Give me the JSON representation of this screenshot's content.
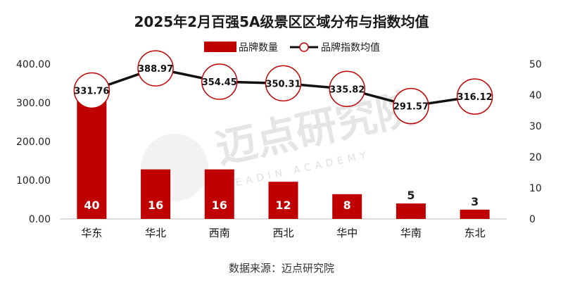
{
  "title": "2025年2月百强5A级景区区域分布与指数均值",
  "source": "数据来源：迈点研究院",
  "watermark": {
    "text_cn": "迈点研究院",
    "text_en": "MEADIN ACADEMY"
  },
  "colors": {
    "bar": "#c00000",
    "line": "#111111",
    "marker_edge": "#c00000",
    "marker_fill": "#ffffff"
  },
  "chart_data": {
    "type": "bar",
    "title": "2025年2月百强5A级景区区域分布与指数均值",
    "categories": [
      "华东",
      "华北",
      "西南",
      "西北",
      "华中",
      "华南",
      "东北"
    ],
    "series": [
      {
        "name": "品牌数量",
        "type": "bar",
        "axis": "right",
        "values": [
          40,
          16,
          16,
          12,
          8,
          5,
          3
        ],
        "labels": [
          "40",
          "16",
          "16",
          "12",
          "8",
          "5",
          "3"
        ]
      },
      {
        "name": "品牌指数均值",
        "type": "line",
        "axis": "left",
        "values": [
          331.76,
          388.97,
          354.45,
          350.31,
          335.82,
          291.57,
          316.12
        ],
        "labels": [
          "331.76",
          "388.97",
          "354.45",
          "350.31",
          "335.82",
          "291.57",
          "316.12"
        ]
      }
    ],
    "left_axis": {
      "range": [
        0,
        400
      ],
      "ticks": [
        0,
        100,
        200,
        300,
        400
      ],
      "tick_labels": [
        "0.00",
        "100.00",
        "200.00",
        "300.00",
        "400.00"
      ]
    },
    "right_axis": {
      "range": [
        0,
        50
      ],
      "ticks": [
        0,
        10,
        20,
        30,
        40,
        50
      ],
      "tick_labels": [
        "0",
        "10",
        "20",
        "30",
        "40",
        "50"
      ]
    },
    "legend": {
      "position": "top",
      "entries": [
        "品牌数量",
        "品牌指数均值"
      ]
    },
    "grid": false
  }
}
